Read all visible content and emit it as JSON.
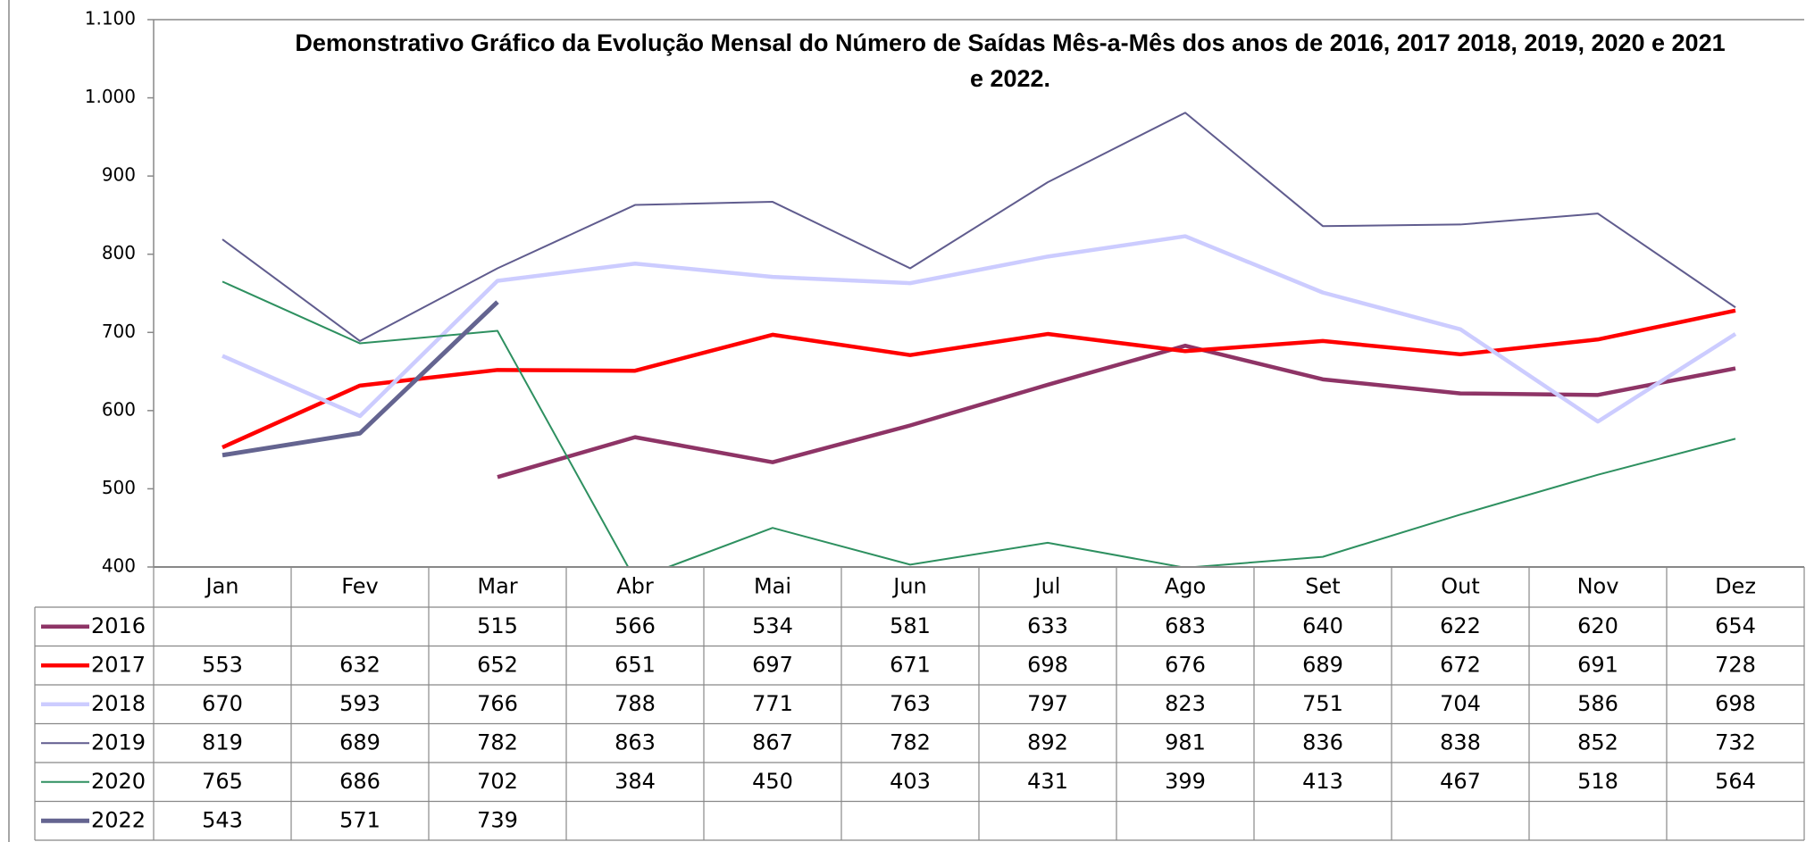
{
  "chart_data": {
    "type": "line",
    "title": "Demonstrativo Gráfico da Evolução Mensal do Número de Saídas Mês-a-Mês dos anos de  2016, 2017 2018, 2019, 2020 e 2021 e 2022.",
    "categories": [
      "Jan",
      "Fev",
      "Mar",
      "Abr",
      "Mai",
      "Jun",
      "Jul",
      "Ago",
      "Set",
      "Out",
      "Nov",
      "Dez"
    ],
    "series": [
      {
        "name": "2016",
        "color": "#8e3466",
        "values": [
          null,
          null,
          515,
          566,
          534,
          581,
          633,
          683,
          640,
          622,
          620,
          654
        ]
      },
      {
        "name": "2017",
        "color": "#ff0000",
        "values": [
          553,
          632,
          652,
          651,
          697,
          671,
          698,
          676,
          689,
          672,
          691,
          728
        ]
      },
      {
        "name": "2018",
        "color": "#ccccff",
        "values": [
          670,
          593,
          766,
          788,
          771,
          763,
          797,
          823,
          751,
          704,
          586,
          698
        ]
      },
      {
        "name": "2019",
        "color": "#605c8e",
        "values": [
          819,
          689,
          782,
          863,
          867,
          782,
          892,
          981,
          836,
          838,
          852,
          732
        ]
      },
      {
        "name": "2020",
        "color": "#2e9060",
        "values": [
          765,
          686,
          702,
          384,
          450,
          403,
          431,
          399,
          413,
          467,
          518,
          564
        ]
      },
      {
        "name": "2022",
        "color": "#646490",
        "values": [
          543,
          571,
          739,
          null,
          null,
          null,
          null,
          null,
          null,
          null,
          null,
          null
        ]
      }
    ],
    "ylim": [
      400,
      1100
    ],
    "yticks": [
      400,
      500,
      600,
      700,
      800,
      900,
      {
        "value": 1000,
        "label": "1.000"
      },
      {
        "value": 1100,
        "label": "1.100"
      }
    ],
    "grid": false
  }
}
